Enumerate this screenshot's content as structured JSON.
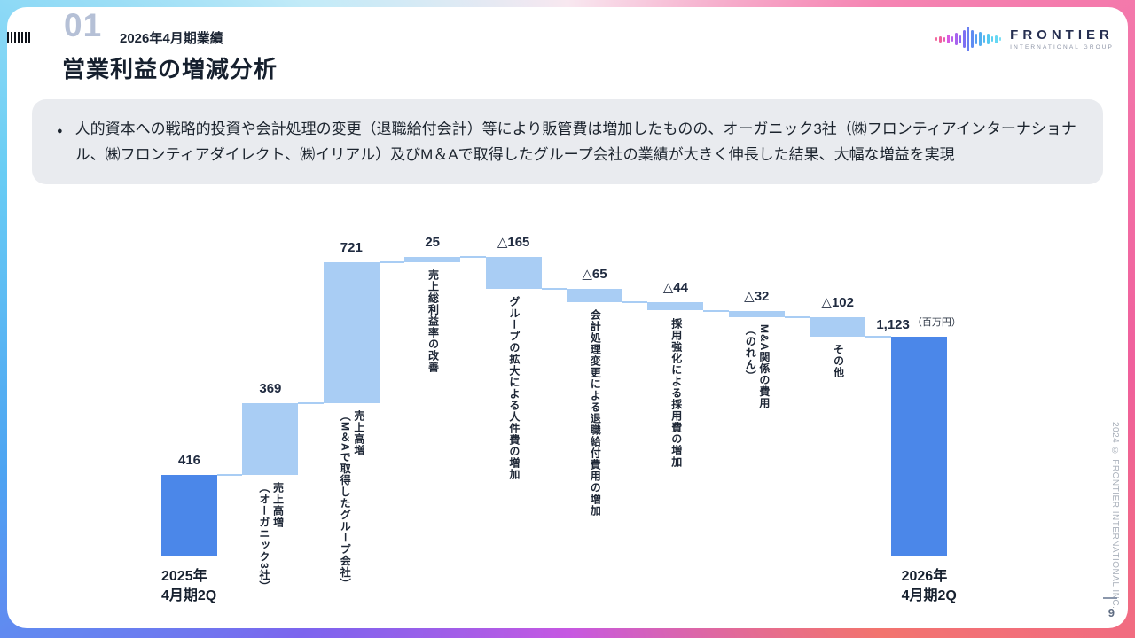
{
  "header": {
    "section_number": "01",
    "section_label": "2026年4月期業績",
    "title": "営業利益の増減分析"
  },
  "logo": {
    "name": "FRONTIER",
    "subtitle": "INTERNATIONAL GROUP",
    "icon": "waveform-icon"
  },
  "summary": {
    "bullet": "●",
    "text": "人的資本への戦略的投資や会計処理の変更（退職給付会計）等により販管費は増加したものの、オーガニック3社（㈱フロンティアインターナショナル、㈱フロンティアダイレクト、㈱イリアル）及びM＆Aで取得したグループ会社の業績が大きく伸長した結果、大幅な増益を実現"
  },
  "chart_data": {
    "type": "waterfall-bar",
    "unit": "百万円",
    "start_label": "2025年\n4月期2Q",
    "end_label": "2026年\n4月期2Q",
    "ylim": [
      0,
      1531
    ],
    "colors": {
      "total": "#4b87e9",
      "delta": "#a9cdf4",
      "connector": "#a9cdf4"
    },
    "steps": [
      {
        "kind": "total",
        "value": 416,
        "display": "416",
        "desc": ""
      },
      {
        "kind": "delta",
        "value": 369,
        "display": "369",
        "desc": "売上高増\n（オーガニック3社）"
      },
      {
        "kind": "delta",
        "value": 721,
        "display": "721",
        "desc": "売上高増\n（M＆Aで取得したグループ会社）"
      },
      {
        "kind": "delta",
        "value": 25,
        "display": "25",
        "desc": "売上総利益率の改善"
      },
      {
        "kind": "delta",
        "value": -165,
        "display": "△165",
        "desc": "グループの拡大による人件費の増加"
      },
      {
        "kind": "delta",
        "value": -65,
        "display": "△65",
        "desc": "会計処理変更による退職給付費用の増加"
      },
      {
        "kind": "delta",
        "value": -44,
        "display": "△44",
        "desc": "採用強化による採用費の増加"
      },
      {
        "kind": "delta",
        "value": -32,
        "display": "△32",
        "desc": "M&A関係の費用\n（のれん）"
      },
      {
        "kind": "delta",
        "value": -102,
        "display": "△102",
        "desc": "その他"
      },
      {
        "kind": "total",
        "value": 1123,
        "display": "1,123",
        "desc": "",
        "unit": "（百万円）"
      }
    ]
  },
  "footer": {
    "copyright": "2024 © FRONTIER INTERNATIONAL INC.",
    "page": "9"
  }
}
